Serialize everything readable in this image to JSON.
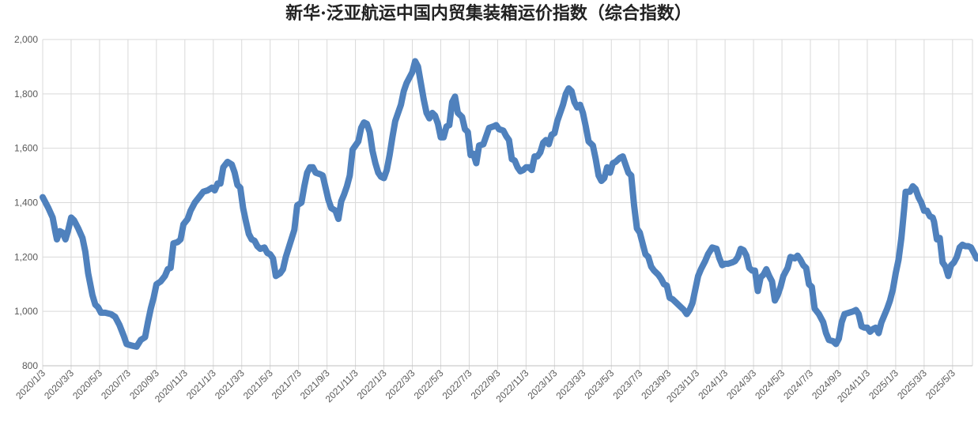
{
  "chart_data": {
    "type": "line",
    "title": "新华·泛亚航运中国内贸集装箱运价指数（综合指数）",
    "xlabel": "",
    "ylabel": "",
    "ylim": [
      800,
      2000
    ],
    "yticks": [
      "800",
      "1,000",
      "1,200",
      "1,400",
      "1,600",
      "1,800",
      "2,000"
    ],
    "ytick_values": [
      800,
      1000,
      1200,
      1400,
      1600,
      1800,
      2000
    ],
    "grid": true,
    "xticks": [
      "2020/1/3",
      "2020/3/3",
      "2020/5/3",
      "2020/7/3",
      "2020/9/3",
      "2020/11/3",
      "2021/1/3",
      "2021/3/3",
      "2021/5/3",
      "2021/7/3",
      "2021/9/3",
      "2021/11/3",
      "2022/1/3",
      "2022/3/3",
      "2022/5/3",
      "2022/7/3",
      "2022/9/3",
      "2022/11/3",
      "2023/1/3",
      "2023/3/3",
      "2023/5/3",
      "2023/7/3",
      "2023/9/3",
      "2023/11/3",
      "2024/1/3",
      "2024/3/3",
      "2024/5/3",
      "2024/7/3",
      "2024/9/3",
      "2024/11/3",
      "2025/1/3",
      "2025/3/3",
      "2025/5/3"
    ],
    "series": [
      {
        "values": [
          [
            0.0,
            1420
          ],
          [
            0.2,
            1380
          ],
          [
            0.35,
            1345
          ],
          [
            0.45,
            1290
          ],
          [
            0.5,
            1265
          ],
          [
            0.6,
            1295
          ],
          [
            0.7,
            1290
          ],
          [
            0.8,
            1265
          ],
          [
            0.9,
            1300
          ],
          [
            1.0,
            1345
          ],
          [
            1.1,
            1335
          ],
          [
            1.25,
            1305
          ],
          [
            1.4,
            1270
          ],
          [
            1.5,
            1220
          ],
          [
            1.6,
            1140
          ],
          [
            1.75,
            1060
          ],
          [
            1.85,
            1025
          ],
          [
            1.95,
            1015
          ],
          [
            2.05,
            995
          ],
          [
            2.2,
            995
          ],
          [
            2.4,
            990
          ],
          [
            2.55,
            980
          ],
          [
            2.7,
            950
          ],
          [
            2.85,
            910
          ],
          [
            2.95,
            880
          ],
          [
            3.1,
            875
          ],
          [
            3.3,
            870
          ],
          [
            3.45,
            895
          ],
          [
            3.6,
            905
          ],
          [
            3.7,
            960
          ],
          [
            3.8,
            1010
          ],
          [
            3.9,
            1050
          ],
          [
            4.0,
            1100
          ],
          [
            4.15,
            1110
          ],
          [
            4.3,
            1130
          ],
          [
            4.4,
            1155
          ],
          [
            4.5,
            1160
          ],
          [
            4.6,
            1250
          ],
          [
            4.75,
            1255
          ],
          [
            4.85,
            1265
          ],
          [
            4.95,
            1320
          ],
          [
            5.1,
            1340
          ],
          [
            5.2,
            1370
          ],
          [
            5.35,
            1400
          ],
          [
            5.5,
            1420
          ],
          [
            5.65,
            1440
          ],
          [
            5.8,
            1445
          ],
          [
            5.95,
            1455
          ],
          [
            6.05,
            1445
          ],
          [
            6.15,
            1470
          ],
          [
            6.25,
            1470
          ],
          [
            6.35,
            1530
          ],
          [
            6.5,
            1550
          ],
          [
            6.65,
            1540
          ],
          [
            6.75,
            1510
          ],
          [
            6.85,
            1465
          ],
          [
            6.95,
            1455
          ],
          [
            7.05,
            1380
          ],
          [
            7.15,
            1330
          ],
          [
            7.25,
            1285
          ],
          [
            7.35,
            1265
          ],
          [
            7.45,
            1260
          ],
          [
            7.55,
            1240
          ],
          [
            7.65,
            1230
          ],
          [
            7.8,
            1235
          ],
          [
            7.9,
            1215
          ],
          [
            8.0,
            1210
          ],
          [
            8.1,
            1195
          ],
          [
            8.2,
            1130
          ],
          [
            8.35,
            1140
          ],
          [
            8.45,
            1155
          ],
          [
            8.55,
            1200
          ],
          [
            8.7,
            1250
          ],
          [
            8.85,
            1300
          ],
          [
            8.95,
            1390
          ],
          [
            9.1,
            1400
          ],
          [
            9.2,
            1460
          ],
          [
            9.3,
            1510
          ],
          [
            9.4,
            1530
          ],
          [
            9.5,
            1530
          ],
          [
            9.6,
            1510
          ],
          [
            9.75,
            1505
          ],
          [
            9.85,
            1500
          ],
          [
            9.95,
            1455
          ],
          [
            10.05,
            1410
          ],
          [
            10.15,
            1380
          ],
          [
            10.3,
            1370
          ],
          [
            10.4,
            1340
          ],
          [
            10.5,
            1405
          ],
          [
            10.6,
            1430
          ],
          [
            10.7,
            1460
          ],
          [
            10.8,
            1500
          ],
          [
            10.9,
            1595
          ],
          [
            11.0,
            1610
          ],
          [
            11.1,
            1625
          ],
          [
            11.2,
            1675
          ],
          [
            11.3,
            1695
          ],
          [
            11.4,
            1690
          ],
          [
            11.5,
            1660
          ],
          [
            11.6,
            1590
          ],
          [
            11.7,
            1545
          ],
          [
            11.8,
            1510
          ],
          [
            11.9,
            1495
          ],
          [
            12.0,
            1490
          ],
          [
            12.1,
            1520
          ],
          [
            12.2,
            1575
          ],
          [
            12.3,
            1640
          ],
          [
            12.4,
            1700
          ],
          [
            12.5,
            1730
          ],
          [
            12.6,
            1760
          ],
          [
            12.7,
            1810
          ],
          [
            12.8,
            1840
          ],
          [
            12.9,
            1860
          ],
          [
            13.0,
            1880
          ],
          [
            13.1,
            1920
          ],
          [
            13.2,
            1900
          ],
          [
            13.3,
            1840
          ],
          [
            13.4,
            1780
          ],
          [
            13.5,
            1730
          ],
          [
            13.6,
            1710
          ],
          [
            13.7,
            1730
          ],
          [
            13.8,
            1720
          ],
          [
            13.9,
            1690
          ],
          [
            14.0,
            1640
          ],
          [
            14.1,
            1640
          ],
          [
            14.2,
            1680
          ],
          [
            14.3,
            1685
          ],
          [
            14.4,
            1770
          ],
          [
            14.5,
            1790
          ],
          [
            14.6,
            1730
          ],
          [
            14.75,
            1715
          ],
          [
            14.85,
            1670
          ],
          [
            14.95,
            1660
          ],
          [
            15.05,
            1575
          ],
          [
            15.15,
            1580
          ],
          [
            15.25,
            1545
          ],
          [
            15.35,
            1610
          ],
          [
            15.5,
            1615
          ],
          [
            15.6,
            1645
          ],
          [
            15.7,
            1675
          ],
          [
            15.85,
            1680
          ],
          [
            15.95,
            1685
          ],
          [
            16.05,
            1670
          ],
          [
            16.2,
            1665
          ],
          [
            16.3,
            1645
          ],
          [
            16.4,
            1630
          ],
          [
            16.5,
            1560
          ],
          [
            16.6,
            1555
          ],
          [
            16.7,
            1530
          ],
          [
            16.8,
            1515
          ],
          [
            16.9,
            1520
          ],
          [
            17.0,
            1530
          ],
          [
            17.1,
            1530
          ],
          [
            17.2,
            1520
          ],
          [
            17.3,
            1570
          ],
          [
            17.4,
            1570
          ],
          [
            17.5,
            1585
          ],
          [
            17.6,
            1620
          ],
          [
            17.7,
            1630
          ],
          [
            17.8,
            1615
          ],
          [
            17.9,
            1650
          ],
          [
            18.0,
            1655
          ],
          [
            18.1,
            1700
          ],
          [
            18.2,
            1730
          ],
          [
            18.3,
            1760
          ],
          [
            18.4,
            1800
          ],
          [
            18.5,
            1820
          ],
          [
            18.6,
            1810
          ],
          [
            18.7,
            1770
          ],
          [
            18.8,
            1750
          ],
          [
            18.9,
            1760
          ],
          [
            19.0,
            1730
          ],
          [
            19.1,
            1680
          ],
          [
            19.2,
            1625
          ],
          [
            19.35,
            1610
          ],
          [
            19.45,
            1560
          ],
          [
            19.55,
            1500
          ],
          [
            19.65,
            1480
          ],
          [
            19.75,
            1490
          ],
          [
            19.85,
            1530
          ],
          [
            19.95,
            1510
          ],
          [
            20.05,
            1545
          ],
          [
            20.15,
            1550
          ],
          [
            20.3,
            1565
          ],
          [
            20.4,
            1570
          ],
          [
            20.5,
            1540
          ],
          [
            20.6,
            1510
          ],
          [
            20.7,
            1500
          ],
          [
            20.8,
            1390
          ],
          [
            20.9,
            1305
          ],
          [
            21.0,
            1290
          ],
          [
            21.1,
            1250
          ],
          [
            21.2,
            1210
          ],
          [
            21.3,
            1200
          ],
          [
            21.4,
            1165
          ],
          [
            21.5,
            1150
          ],
          [
            21.65,
            1135
          ],
          [
            21.75,
            1120
          ],
          [
            21.85,
            1100
          ],
          [
            21.95,
            1095
          ],
          [
            22.05,
            1050
          ],
          [
            22.15,
            1045
          ],
          [
            22.3,
            1030
          ],
          [
            22.45,
            1015
          ],
          [
            22.55,
            1005
          ],
          [
            22.65,
            990
          ],
          [
            22.75,
            1005
          ],
          [
            22.85,
            1030
          ],
          [
            22.95,
            1080
          ],
          [
            23.05,
            1130
          ],
          [
            23.15,
            1155
          ],
          [
            23.3,
            1185
          ],
          [
            23.4,
            1210
          ],
          [
            23.55,
            1235
          ],
          [
            23.7,
            1230
          ],
          [
            23.8,
            1195
          ],
          [
            23.9,
            1170
          ],
          [
            24.0,
            1175
          ],
          [
            24.1,
            1175
          ],
          [
            24.25,
            1180
          ],
          [
            24.35,
            1185
          ],
          [
            24.45,
            1200
          ],
          [
            24.55,
            1230
          ],
          [
            24.65,
            1225
          ],
          [
            24.75,
            1205
          ],
          [
            24.85,
            1160
          ],
          [
            24.95,
            1150
          ],
          [
            25.05,
            1150
          ],
          [
            25.15,
            1075
          ],
          [
            25.25,
            1125
          ],
          [
            25.35,
            1135
          ],
          [
            25.45,
            1155
          ],
          [
            25.55,
            1130
          ],
          [
            25.65,
            1110
          ],
          [
            25.75,
            1040
          ],
          [
            25.85,
            1060
          ],
          [
            25.95,
            1090
          ],
          [
            26.05,
            1130
          ],
          [
            26.2,
            1160
          ],
          [
            26.3,
            1200
          ],
          [
            26.45,
            1195
          ],
          [
            26.55,
            1205
          ],
          [
            26.65,
            1190
          ],
          [
            26.75,
            1170
          ],
          [
            26.85,
            1160
          ],
          [
            26.95,
            1100
          ],
          [
            27.05,
            1090
          ],
          [
            27.15,
            1010
          ],
          [
            27.3,
            990
          ],
          [
            27.45,
            960
          ],
          [
            27.55,
            920
          ],
          [
            27.65,
            895
          ],
          [
            27.8,
            890
          ],
          [
            27.9,
            880
          ],
          [
            28.0,
            900
          ],
          [
            28.1,
            960
          ],
          [
            28.2,
            990
          ],
          [
            28.35,
            995
          ],
          [
            28.5,
            1000
          ],
          [
            28.6,
            1005
          ],
          [
            28.7,
            990
          ],
          [
            28.8,
            945
          ],
          [
            28.9,
            940
          ],
          [
            29.0,
            940
          ],
          [
            29.1,
            925
          ],
          [
            29.2,
            935
          ],
          [
            29.3,
            940
          ],
          [
            29.4,
            920
          ],
          [
            29.5,
            960
          ],
          [
            29.6,
            985
          ],
          [
            29.7,
            1010
          ],
          [
            29.8,
            1040
          ],
          [
            29.9,
            1080
          ],
          [
            30.0,
            1140
          ],
          [
            30.1,
            1190
          ],
          [
            30.2,
            1270
          ],
          [
            30.3,
            1380
          ],
          [
            30.35,
            1440
          ],
          [
            30.5,
            1440
          ],
          [
            30.6,
            1460
          ],
          [
            30.7,
            1450
          ],
          [
            30.8,
            1420
          ],
          [
            30.9,
            1400
          ],
          [
            31.0,
            1370
          ],
          [
            31.1,
            1370
          ],
          [
            31.2,
            1350
          ],
          [
            31.3,
            1345
          ],
          [
            31.35,
            1330
          ],
          [
            31.45,
            1265
          ],
          [
            31.55,
            1270
          ],
          [
            31.65,
            1180
          ],
          [
            31.75,
            1165
          ],
          [
            31.85,
            1130
          ],
          [
            31.95,
            1170
          ],
          [
            32.05,
            1180
          ],
          [
            32.15,
            1200
          ],
          [
            32.25,
            1235
          ],
          [
            32.35,
            1245
          ],
          [
            32.45,
            1240
          ],
          [
            32.55,
            1240
          ],
          [
            32.65,
            1235
          ],
          [
            32.75,
            1215
          ],
          [
            32.85,
            1195
          ],
          [
            32.95,
            1195
          ],
          [
            33.05,
            1195
          ],
          [
            33.15,
            1180
          ],
          [
            33.25,
            1165
          ],
          [
            33.35,
            1155
          ],
          [
            33.45,
            1150
          ],
          [
            33.55,
            1165
          ],
          [
            33.65,
            1155
          ],
          [
            33.75,
            1125
          ],
          [
            33.85,
            1120
          ]
        ]
      }
    ]
  }
}
